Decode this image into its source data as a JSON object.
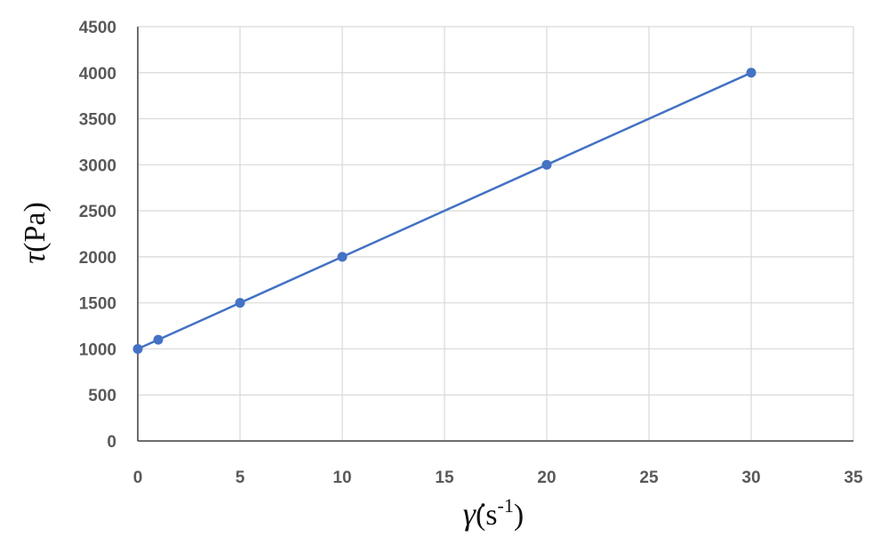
{
  "chart_data": {
    "type": "line",
    "title": "",
    "xlabel": {
      "symbol": "γ̇",
      "open": "(s",
      "exponent": "-1",
      "close": ")"
    },
    "ylabel": {
      "symbol": "τ",
      "rest": "(Pa)"
    },
    "xlim": [
      0,
      35
    ],
    "ylim": [
      0,
      4500
    ],
    "x_ticks": [
      0,
      5,
      10,
      15,
      20,
      25,
      30,
      35
    ],
    "y_ticks": [
      0,
      500,
      1000,
      1500,
      2000,
      2500,
      3000,
      3500,
      4000,
      4500
    ],
    "grid": true,
    "legend": "none",
    "series": [
      {
        "x": [
          0,
          1,
          5,
          10,
          20,
          30
        ],
        "y": [
          1000,
          1100,
          1500,
          2000,
          3000,
          4000
        ],
        "color": "#4472C4",
        "marker": "circle"
      }
    ],
    "colors": {
      "grid": "#D9D9D9",
      "axis": "#404040",
      "tick_text": "#595959"
    }
  }
}
